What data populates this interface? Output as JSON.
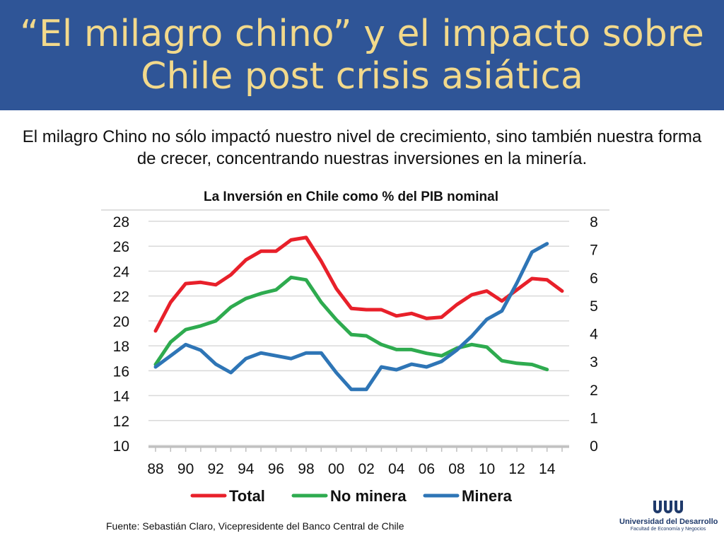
{
  "slide": {
    "title": "“El milagro chino” y el impacto sobre Chile post crisis asiática",
    "subtitle": "El milagro Chino no sólo impactó nuestro nivel de crecimiento, sino también nuestra forma de crecer, concentrando nuestras inversiones en la minería.",
    "source": "Fuente: Sebastián Claro, Vicepresidente del Banco Central de Chile",
    "logo_name": "Universidad del Desarrollo",
    "logo_faculty": "Facultad de Economía y Negocios",
    "colors": {
      "band": "#2f5597",
      "title": "#f2d98b"
    }
  },
  "chart_data": {
    "type": "line",
    "title": "La Inversión en Chile como % del PIB nominal",
    "x": [
      1988,
      1989,
      1990,
      1991,
      1992,
      1993,
      1994,
      1995,
      1996,
      1997,
      1998,
      1999,
      2000,
      2001,
      2002,
      2003,
      2004,
      2005,
      2006,
      2007,
      2008,
      2009,
      2010,
      2011,
      2012,
      2013,
      2014,
      2015
    ],
    "x_tick_labels": [
      "88",
      "90",
      "92",
      "94",
      "96",
      "98",
      "00",
      "02",
      "04",
      "06",
      "08",
      "10",
      "12",
      "14"
    ],
    "y_left": {
      "lim": [
        10,
        28
      ],
      "ticks": [
        "10",
        "12",
        "14",
        "16",
        "18",
        "20",
        "22",
        "24",
        "26",
        "28"
      ]
    },
    "y_right": {
      "lim": [
        0,
        8
      ],
      "ticks": [
        "0",
        "1",
        "2",
        "3",
        "4",
        "5",
        "6",
        "7",
        "8"
      ]
    },
    "grid": true,
    "legend_position": "bottom",
    "series": [
      {
        "name": "Total",
        "axis": "left",
        "color": "#e8202a",
        "values": [
          19.2,
          21.5,
          23.0,
          23.1,
          22.9,
          23.7,
          24.9,
          25.6,
          25.6,
          26.5,
          26.7,
          24.8,
          22.6,
          21.0,
          20.9,
          20.9,
          20.4,
          20.6,
          20.2,
          20.3,
          21.3,
          22.1,
          22.4,
          21.6,
          22.5,
          23.4,
          23.3,
          22.4
        ]
      },
      {
        "name": "No minera",
        "axis": "left",
        "color": "#2eab4f",
        "values": [
          16.5,
          18.3,
          19.3,
          19.6,
          20.0,
          21.1,
          21.8,
          22.2,
          22.5,
          23.5,
          23.3,
          21.5,
          20.1,
          18.9,
          18.8,
          18.1,
          17.7,
          17.7,
          17.4,
          17.2,
          17.8,
          18.1,
          17.9,
          16.8,
          16.6,
          16.5,
          16.1,
          null
        ]
      },
      {
        "name": "Minera",
        "axis": "right",
        "color": "#2e75b6",
        "values": [
          2.8,
          3.2,
          3.6,
          3.4,
          2.9,
          2.6,
          3.1,
          3.3,
          3.2,
          3.1,
          3.3,
          3.3,
          2.6,
          2.0,
          2.0,
          2.8,
          2.7,
          2.9,
          2.8,
          3.0,
          3.4,
          3.9,
          4.5,
          4.8,
          5.8,
          6.9,
          7.2,
          null
        ]
      }
    ]
  }
}
